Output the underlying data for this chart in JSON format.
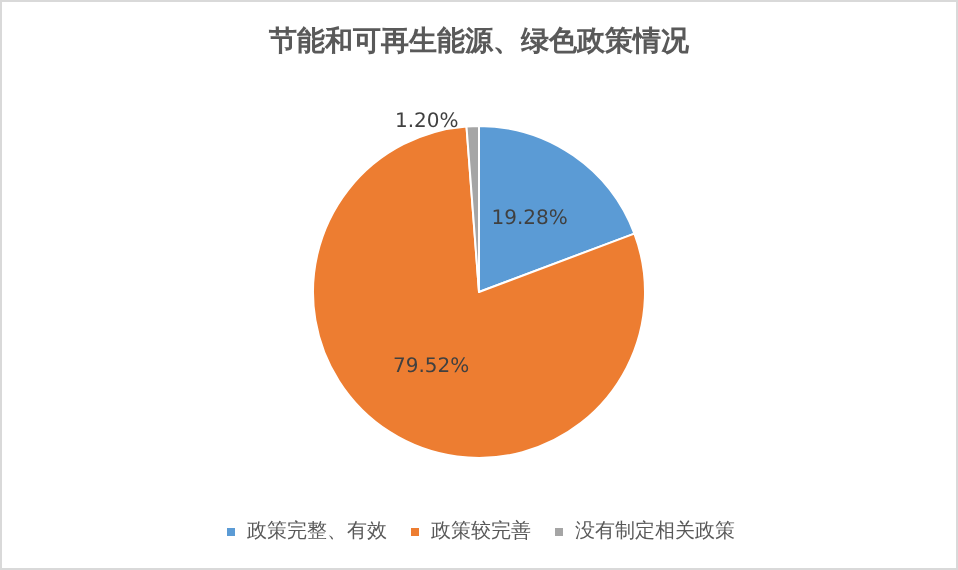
{
  "chart_data": {
    "type": "pie",
    "title": "节能和可再生能源、绿色政策情况",
    "categories": [
      "政策完整、有效",
      "政策较完善",
      "没有制定相关政策"
    ],
    "values": [
      19.28,
      79.52,
      1.2
    ],
    "colors": [
      "#5b9bd5",
      "#ed7d31",
      "#a5a5a5"
    ],
    "value_labels": [
      "19.28%",
      "79.52%",
      "1.20%"
    ],
    "legend": "bottom"
  }
}
